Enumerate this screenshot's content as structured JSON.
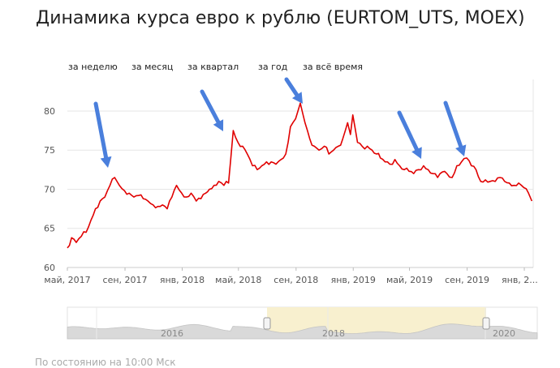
{
  "page": {
    "title": "Динамика курса евро к рублю (EURTOM_UTS, MOEX)",
    "footer": "По состоянию на 10:00 Мск"
  },
  "tabs": [
    {
      "label": "за неделю"
    },
    {
      "label": "за месяц"
    },
    {
      "label": "за квартал"
    },
    {
      "label": "за год"
    },
    {
      "label": "за всё время"
    }
  ],
  "colors": {
    "line": "#e00000",
    "arrow": "#4a7fdc",
    "nav_highlight": "#f8f0cf",
    "axis_text": "#555555",
    "grid": "#e6e6e6"
  },
  "chart_data": {
    "type": "line",
    "title": "",
    "xlabel": "",
    "ylabel": "",
    "ylim": [
      60,
      83
    ],
    "xlim": [
      "2017-05-01",
      "2020-01-20"
    ],
    "yticks": [
      60,
      65,
      70,
      75,
      80
    ],
    "xtick_labels": [
      {
        "date": "2017-05-01",
        "label": "май, 2017"
      },
      {
        "date": "2017-09-01",
        "label": "сен, 2017"
      },
      {
        "date": "2018-01-01",
        "label": "янв, 2018"
      },
      {
        "date": "2018-05-01",
        "label": "май, 2018"
      },
      {
        "date": "2018-09-01",
        "label": "сен, 2018"
      },
      {
        "date": "2019-01-01",
        "label": "янв, 2019"
      },
      {
        "date": "2019-05-01",
        "label": "май, 2019"
      },
      {
        "date": "2019-09-01",
        "label": "сен, 2019"
      },
      {
        "date": "2020-01-01",
        "label": "янв, 2..."
      }
    ],
    "grid": true,
    "series": [
      {
        "x": [
          "2017-05-01",
          "2017-05-10",
          "2017-05-20",
          "2017-05-31",
          "2017-06-10",
          "2017-06-20",
          "2017-06-30",
          "2017-07-10",
          "2017-07-20",
          "2017-07-31",
          "2017-08-10",
          "2017-08-20",
          "2017-08-31",
          "2017-09-10",
          "2017-09-20",
          "2017-09-30",
          "2017-10-10",
          "2017-10-20",
          "2017-10-31",
          "2017-11-10",
          "2017-11-20",
          "2017-11-30",
          "2017-12-10",
          "2017-12-20",
          "2017-12-31",
          "2018-01-10",
          "2018-01-20",
          "2018-01-31",
          "2018-02-10",
          "2018-02-20",
          "2018-02-28",
          "2018-03-10",
          "2018-03-20",
          "2018-03-31",
          "2018-04-05",
          "2018-04-10",
          "2018-04-20",
          "2018-04-30",
          "2018-05-10",
          "2018-05-20",
          "2018-05-31",
          "2018-06-10",
          "2018-06-20",
          "2018-06-30",
          "2018-07-10",
          "2018-07-20",
          "2018-07-31",
          "2018-08-05",
          "2018-08-10",
          "2018-08-15",
          "2018-08-20",
          "2018-08-31",
          "2018-09-05",
          "2018-09-10",
          "2018-09-20",
          "2018-09-30",
          "2018-10-10",
          "2018-10-20",
          "2018-10-31",
          "2018-11-10",
          "2018-11-20",
          "2018-11-30",
          "2018-12-10",
          "2018-12-20",
          "2018-12-26",
          "2018-12-31",
          "2019-01-10",
          "2019-01-20",
          "2019-01-31",
          "2019-02-10",
          "2019-02-20",
          "2019-02-28",
          "2019-03-10",
          "2019-03-20",
          "2019-03-31",
          "2019-04-10",
          "2019-04-20",
          "2019-04-30",
          "2019-05-10",
          "2019-05-20",
          "2019-05-31",
          "2019-06-10",
          "2019-06-20",
          "2019-06-30",
          "2019-07-10",
          "2019-07-20",
          "2019-07-31",
          "2019-08-10",
          "2019-08-20",
          "2019-08-31",
          "2019-09-10",
          "2019-09-20",
          "2019-09-30",
          "2019-10-10",
          "2019-10-20",
          "2019-10-31",
          "2019-11-10",
          "2019-11-20",
          "2019-11-30",
          "2019-12-10",
          "2019-12-20",
          "2019-12-31",
          "2020-01-10",
          "2020-01-17"
        ],
        "y": [
          62.5,
          63.8,
          63.2,
          64.0,
          64.5,
          66.0,
          67.5,
          68.5,
          69.0,
          70.5,
          71.5,
          70.5,
          69.8,
          69.5,
          69.0,
          69.2,
          68.8,
          68.5,
          68.0,
          67.8,
          68.0,
          67.5,
          69.0,
          70.5,
          69.5,
          69.0,
          69.5,
          68.5,
          68.8,
          69.5,
          70.0,
          70.5,
          71.0,
          70.5,
          71.0,
          70.8,
          77.5,
          76.0,
          75.5,
          74.5,
          73.0,
          72.5,
          73.0,
          73.5,
          73.5,
          73.2,
          73.8,
          74.0,
          74.5,
          76.0,
          78.0,
          79.0,
          80.0,
          81.0,
          78.5,
          76.5,
          75.5,
          75.0,
          75.5,
          74.5,
          75.0,
          75.5,
          76.5,
          78.5,
          77.0,
          79.5,
          76.0,
          75.5,
          75.5,
          75.0,
          74.5,
          74.0,
          73.5,
          73.2,
          73.8,
          73.0,
          72.5,
          72.3,
          72.0,
          72.5,
          73.0,
          72.5,
          72.0,
          71.5,
          72.2,
          72.0,
          71.5,
          73.0,
          73.5,
          74.0,
          73.0,
          72.5,
          71.0,
          71.2,
          71.0,
          71.0,
          71.5,
          71.0,
          70.8,
          70.5,
          70.8,
          70.2,
          69.5,
          68.5
        ]
      }
    ],
    "navigator": {
      "xtick_labels": [
        "2016",
        "2018",
        "2020"
      ]
    }
  }
}
